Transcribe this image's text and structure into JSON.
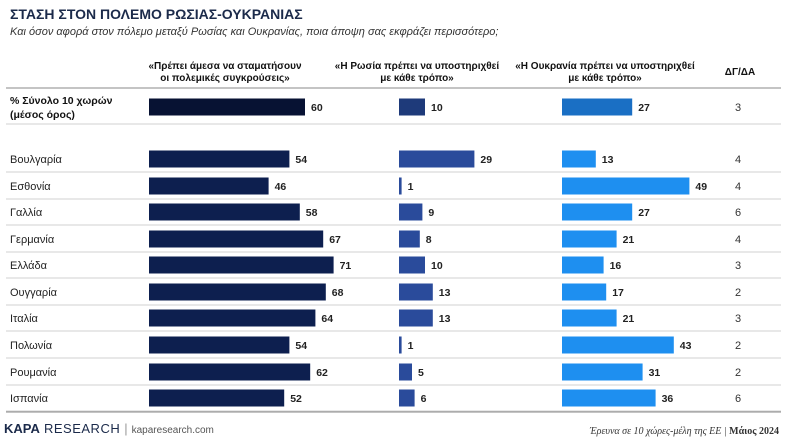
{
  "header": {
    "title": "ΣΤΑΣΗ ΣΤΟΝ ΠΟΛΕΜΟ ΡΩΣΙΑΣ-ΟΥΚΡΑΝΙΑΣ",
    "subtitle": "Και όσον αφορά στον πόλεμο μεταξύ Ρωσίας και Ουκρανίας, ποια άποψη σας εκφράζει περισσότερο;"
  },
  "columns": {
    "col1_line1": "«Πρέπει άμεσα να σταματήσουν",
    "col1_line2": "οι πολεμικές συγκρούσεις»",
    "col2_line1": "«Η Ρωσία πρέπει να υποστηριχθεί",
    "col2_line2": "με κάθε τρόπο»",
    "col3_line1": "«Η Ουκρανία πρέπει να υποστηριχθεί",
    "col3_line2": "με κάθε τρόπο»",
    "col4": "ΔΓ/ΔΑ"
  },
  "footer": {
    "brand_k": "K",
    "brand_a": "APA",
    "brand_rest": " RESEARCH",
    "url": "kaparesearch.com",
    "note": "Έρευνα σε 10 χώρες-μέλη της ΕΕ |",
    "date": "Μάιος 2024"
  },
  "colors": {
    "stop_war": "#0d1f4f",
    "stop_war_total": "#071233",
    "russia": "#2a4b9b",
    "russia_total": "#1e3a7a",
    "ukraine": "#1e8ff0",
    "ukraine_total": "#1a6fc4"
  },
  "chart_data": {
    "type": "bar",
    "orientation": "horizontal",
    "categories": [
      "% Σύνολο 10 χωρών (μέσος όρος)",
      "Βουλγαρία",
      "Εσθονία",
      "Γαλλία",
      "Γερμανία",
      "Ελλάδα",
      "Ουγγαρία",
      "Ιταλία",
      "Πολωνία",
      "Ρουμανία",
      "Ισπανία"
    ],
    "total_label_line1": "% Σύνολο 10 χωρών",
    "total_label_line2": "(μέσος όρος)",
    "series": [
      {
        "name": "«Πρέπει άμεσα να σταματήσουν οι πολεμικές συγκρούσεις»",
        "values": [
          60,
          54,
          46,
          58,
          67,
          71,
          68,
          64,
          54,
          62,
          52
        ]
      },
      {
        "name": "«Η Ρωσία πρέπει να υποστηριχθεί με κάθε τρόπο»",
        "values": [
          10,
          29,
          1,
          9,
          8,
          10,
          13,
          13,
          1,
          5,
          6
        ]
      },
      {
        "name": "«Η Ουκρανία πρέπει να υποστηριχθεί με κάθε τρόπο»",
        "values": [
          27,
          13,
          49,
          27,
          21,
          16,
          17,
          21,
          43,
          31,
          36
        ]
      },
      {
        "name": "ΔΓ/ΔΑ",
        "values": [
          3,
          4,
          4,
          6,
          4,
          3,
          2,
          3,
          2,
          2,
          6
        ]
      }
    ]
  }
}
